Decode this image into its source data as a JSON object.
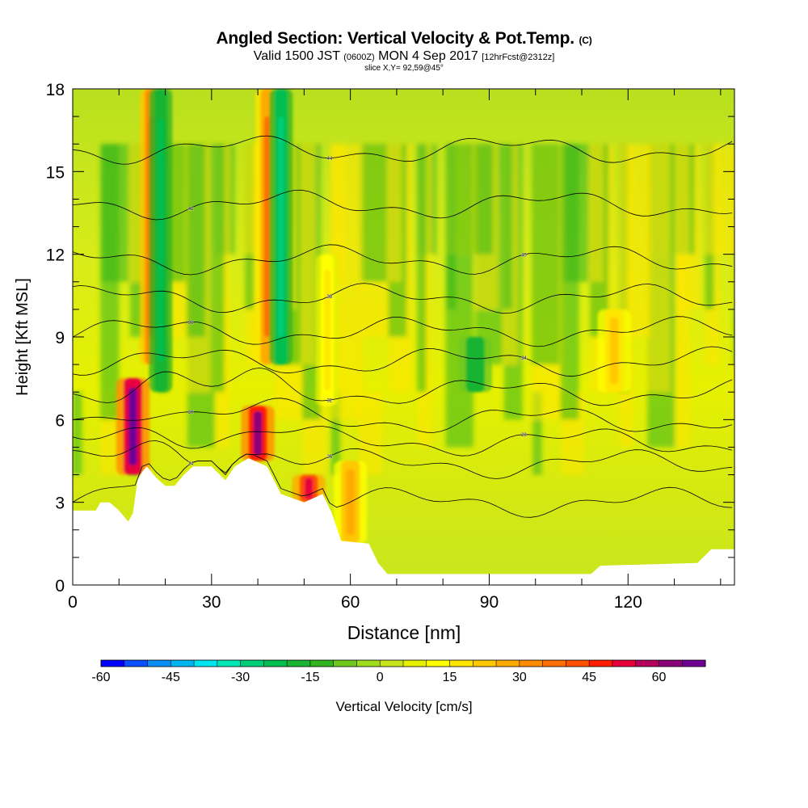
{
  "title": {
    "main": "Angled Section: Vertical Velocity & Pot.Temp.",
    "main_suffix": "(C)",
    "valid_prefix": "Valid 1500 JST",
    "valid_utc": "(0600Z)",
    "valid_date": "MON 4 Sep 2017",
    "forecast": "[12hrFcst@2312z]",
    "slice": "slice X,Y= 92,59@45°"
  },
  "chart_data": {
    "type": "heatmap",
    "xlabel": "Distance [nm]",
    "ylabel": "Height [Kft MSL]",
    "xlim": [
      0,
      143
    ],
    "ylim": [
      0,
      18
    ],
    "x_ticks": [
      0,
      30,
      60,
      90,
      120
    ],
    "y_ticks": [
      0,
      3,
      6,
      9,
      12,
      15,
      18
    ],
    "grid": false,
    "colorbar": {
      "label": "Vertical Velocity [cm/s]",
      "min": -60,
      "max": 70,
      "step": 5,
      "tick_labels": [
        "-60",
        "-45",
        "-30",
        "-15",
        "0",
        "15",
        "30",
        "45",
        "60"
      ],
      "colors": [
        "#0000ff",
        "#0a50ff",
        "#0a8cf5",
        "#00b4f0",
        "#00e6f0",
        "#00e6b4",
        "#00cd78",
        "#00be50",
        "#18b432",
        "#32b41e",
        "#6ec81e",
        "#a0dc1e",
        "#c8e61e",
        "#e6f000",
        "#ffff00",
        "#ffe600",
        "#ffc800",
        "#ffaa00",
        "#ff8c00",
        "#ff6e00",
        "#ff5000",
        "#ff1e00",
        "#e6003c",
        "#b4005a",
        "#8c0078",
        "#6e0096"
      ]
    },
    "theta_isotherms_c": [
      24,
      26,
      28,
      30,
      32,
      34,
      36,
      38,
      40,
      42,
      44
    ],
    "velocity_features": [
      {
        "x": 13,
        "z_bottom": 4.0,
        "z_top": 7.5,
        "w_cms": 65
      },
      {
        "x": 17,
        "z_bottom": 8.0,
        "z_top": 18.0,
        "w_cms": 40
      },
      {
        "x": 19,
        "z_bottom": 7.0,
        "z_top": 18.0,
        "w_cms": -25
      },
      {
        "x": 40,
        "z_bottom": 4.5,
        "z_top": 6.5,
        "w_cms": 60
      },
      {
        "x": 42,
        "z_bottom": 8.0,
        "z_top": 18.0,
        "w_cms": 35
      },
      {
        "x": 45,
        "z_bottom": 8.0,
        "z_top": 18.0,
        "w_cms": -30
      },
      {
        "x": 51,
        "z_bottom": 3.0,
        "z_top": 4.0,
        "w_cms": 50
      },
      {
        "x": 55,
        "z_bottom": 6.5,
        "z_top": 12.0,
        "w_cms": 15
      },
      {
        "x": 60,
        "z_bottom": 1.5,
        "z_top": 4.5,
        "w_cms": 25
      },
      {
        "x": 87,
        "z_bottom": 7.0,
        "z_top": 9.0,
        "w_cms": -20
      },
      {
        "x": 117,
        "z_bottom": 7.0,
        "z_top": 10.0,
        "w_cms": 20
      }
    ],
    "terrain_kft": [
      [
        0,
        2.7
      ],
      [
        5,
        2.7
      ],
      [
        6,
        3.0
      ],
      [
        8,
        3.0
      ],
      [
        10,
        2.7
      ],
      [
        12,
        2.3
      ],
      [
        13,
        2.6
      ],
      [
        14,
        3.8
      ],
      [
        15,
        4.1
      ],
      [
        16,
        4.3
      ],
      [
        18,
        3.9
      ],
      [
        20,
        3.6
      ],
      [
        22,
        3.6
      ],
      [
        24,
        4.0
      ],
      [
        26,
        4.3
      ],
      [
        30,
        4.3
      ],
      [
        33,
        3.8
      ],
      [
        35,
        4.3
      ],
      [
        38,
        4.6
      ],
      [
        42,
        4.3
      ],
      [
        45,
        3.3
      ],
      [
        50,
        3.0
      ],
      [
        54,
        3.3
      ],
      [
        56,
        2.6
      ],
      [
        58,
        1.6
      ],
      [
        64,
        1.5
      ],
      [
        66,
        0.8
      ],
      [
        68,
        0.4
      ],
      [
        75,
        0.4
      ],
      [
        112,
        0.4
      ],
      [
        114,
        0.7
      ],
      [
        135,
        0.8
      ],
      [
        138,
        1.3
      ],
      [
        143,
        1.3
      ]
    ]
  }
}
